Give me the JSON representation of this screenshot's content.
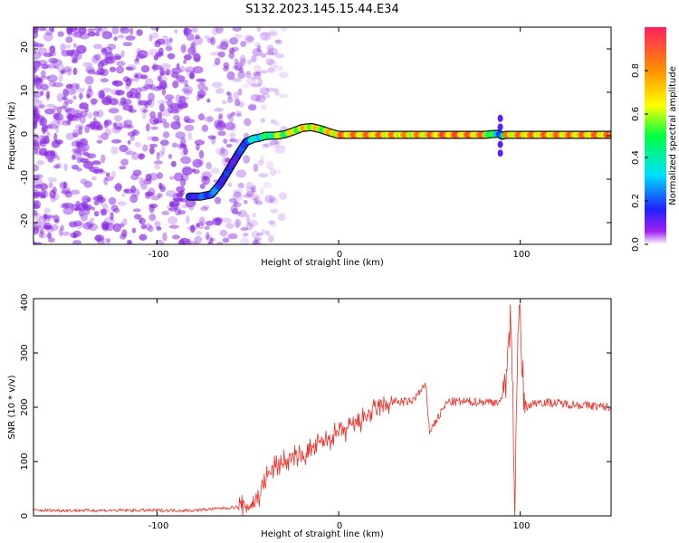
{
  "title": "S132.2023.145.15.44.E34",
  "colors": {
    "snr_line": "#e8322a",
    "noise_fill": "#8a2be2",
    "track_outline": "#101010",
    "axis": "#000000"
  },
  "chart_data": [
    {
      "type": "heatmap",
      "xlabel": "Height of straight line (km)",
      "ylabel": "Frequency (Hz)",
      "xlim": [
        -168,
        150
      ],
      "ylim": [
        -25,
        25
      ],
      "xticks": [
        -100,
        0,
        100
      ],
      "yticks": [
        -20,
        -10,
        0,
        10,
        20
      ],
      "xtick_labels": [
        "-100",
        "0",
        "100"
      ],
      "ytick_labels": [
        "-20",
        "-10",
        "0",
        "10",
        "20"
      ],
      "colorbar": {
        "label": "Normalized spectral amplitude",
        "range": [
          0,
          1
        ],
        "ticks": [
          0.0,
          0.2,
          0.4,
          0.6,
          0.8
        ],
        "tick_labels": [
          "0.0",
          "0.2",
          "0.4",
          "0.6",
          "0.8"
        ],
        "colormap": [
          "#ffffff",
          "#a020f0",
          "#2020ff",
          "#00e0ff",
          "#00ff40",
          "#ffff00",
          "#ff9000",
          "#ff2060"
        ]
      },
      "noise_region": {
        "x_range": [
          -168,
          -50
        ],
        "y_range": [
          -25,
          25
        ],
        "max_amplitude": 0.15
      },
      "track": {
        "x": [
          -82,
          -76,
          -70,
          -65,
          -60,
          -55,
          -51,
          -47,
          -44,
          -40,
          -35,
          -30,
          -25,
          -20,
          -15,
          -10,
          -5,
          0,
          20,
          40,
          60,
          80,
          88,
          90,
          92,
          100,
          120,
          150
        ],
        "freq": [
          -14,
          -14,
          -13.5,
          -11,
          -7.5,
          -4,
          -1.5,
          -0.7,
          -0.5,
          0,
          0,
          0.3,
          1,
          1.8,
          2,
          1.5,
          0.8,
          0.2,
          0.2,
          0.2,
          0.2,
          0.2,
          0.5,
          0,
          0.2,
          0.2,
          0.2,
          0.2
        ],
        "amplitude": [
          0.3,
          0.35,
          0.4,
          0.35,
          0.3,
          0.3,
          0.4,
          0.5,
          0.55,
          0.6,
          0.7,
          0.75,
          0.8,
          0.85,
          0.85,
          0.8,
          0.85,
          0.95,
          0.95,
          0.9,
          1.0,
          0.95,
          0.4,
          0.5,
          0.9,
          0.95,
          0.95,
          0.95
        ]
      }
    },
    {
      "type": "line",
      "xlabel": "Height of straight line (km)",
      "ylabel": "SNR (10 * v/v)",
      "xlim": [
        -168,
        150
      ],
      "ylim": [
        0,
        400
      ],
      "xticks": [
        -100,
        0,
        100
      ],
      "yticks": [
        0,
        100,
        200,
        300,
        400
      ],
      "xtick_labels": [
        "-100",
        "0",
        "100"
      ],
      "ytick_labels": [
        "0",
        "100",
        "200",
        "300",
        "400"
      ],
      "series": [
        {
          "name": "SNR",
          "x": [
            -168,
            -150,
            -120,
            -100,
            -80,
            -60,
            -50,
            -45,
            -40,
            -35,
            -30,
            -20,
            -10,
            0,
            10,
            20,
            30,
            40,
            48,
            50,
            60,
            80,
            90,
            95,
            97,
            99,
            102,
            110,
            130,
            150
          ],
          "values": [
            10,
            10,
            10,
            10,
            10,
            15,
            18,
            30,
            70,
            90,
            100,
            110,
            135,
            150,
            170,
            195,
            210,
            210,
            240,
            155,
            210,
            210,
            210,
            350,
            20,
            400,
            200,
            210,
            205,
            200
          ]
        }
      ]
    }
  ]
}
